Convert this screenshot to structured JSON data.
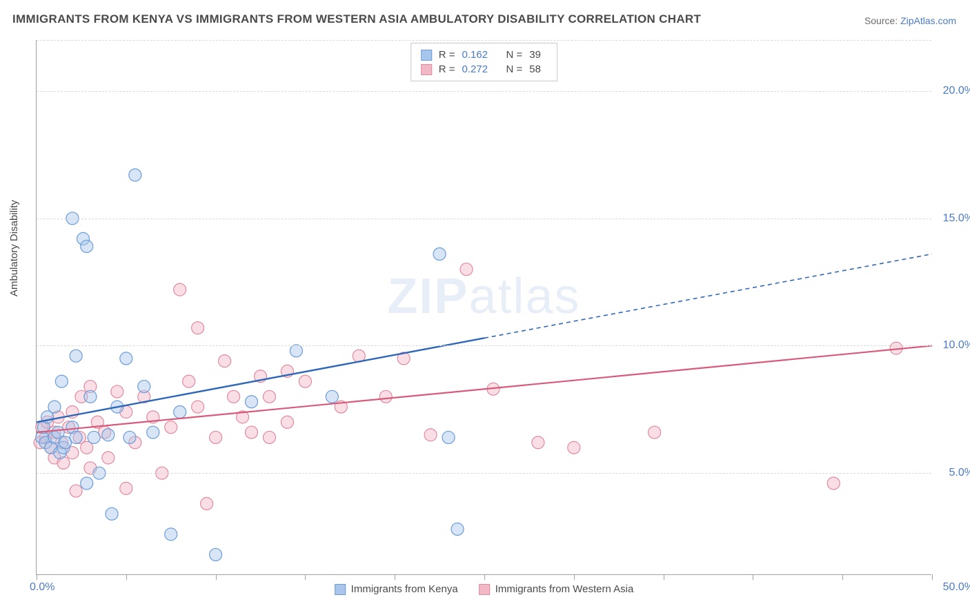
{
  "title": "IMMIGRANTS FROM KENYA VS IMMIGRANTS FROM WESTERN ASIA AMBULATORY DISABILITY CORRELATION CHART",
  "source_prefix": "Source: ",
  "source_link": "ZipAtlas.com",
  "y_axis_label": "Ambulatory Disability",
  "watermark_a": "ZIP",
  "watermark_b": "atlas",
  "chart": {
    "type": "scatter-correlation",
    "x_range": [
      0,
      50
    ],
    "y_range": [
      1,
      22
    ],
    "x_ticks": [
      0,
      5,
      10,
      15,
      20,
      25,
      30,
      35,
      40,
      45,
      50
    ],
    "x_labels": {
      "0": "0.0%",
      "50": "50.0%"
    },
    "y_gridlines": [
      5,
      10,
      15,
      20
    ],
    "y_labels": {
      "5": "5.0%",
      "10": "10.0%",
      "15": "15.0%",
      "20": "20.0%"
    },
    "background_color": "#ffffff",
    "grid_color": "#d8d8d8",
    "axis_color": "#a0a0a0",
    "tick_label_color": "#4a7bc4",
    "marker_radius": 9,
    "marker_opacity": 0.45,
    "series": [
      {
        "id": "kenya",
        "label": "Immigrants from Kenya",
        "color_fill": "#a8c6ec",
        "color_stroke": "#6a9cd8",
        "line_color": "#2e66b8",
        "R": "0.162",
        "N": "39",
        "trend": {
          "x1": 0,
          "y1": 7.0,
          "x2": 25,
          "y2": 10.3,
          "dash_x2": 50,
          "dash_y2": 13.6
        },
        "points": [
          [
            0.3,
            6.4
          ],
          [
            0.4,
            6.8
          ],
          [
            0.5,
            6.2
          ],
          [
            0.6,
            7.2
          ],
          [
            0.8,
            6.0
          ],
          [
            1.0,
            6.4
          ],
          [
            1.0,
            7.6
          ],
          [
            1.2,
            6.6
          ],
          [
            1.3,
            5.8
          ],
          [
            1.4,
            8.6
          ],
          [
            1.5,
            6.0
          ],
          [
            1.6,
            6.2
          ],
          [
            2.0,
            6.8
          ],
          [
            2.0,
            15.0
          ],
          [
            2.2,
            9.6
          ],
          [
            2.2,
            6.4
          ],
          [
            2.6,
            14.2
          ],
          [
            2.8,
            4.6
          ],
          [
            2.8,
            13.9
          ],
          [
            3.0,
            8.0
          ],
          [
            3.2,
            6.4
          ],
          [
            3.5,
            5.0
          ],
          [
            4.0,
            6.5
          ],
          [
            4.2,
            3.4
          ],
          [
            4.5,
            7.6
          ],
          [
            5.0,
            9.5
          ],
          [
            5.2,
            6.4
          ],
          [
            5.5,
            16.7
          ],
          [
            6.0,
            8.4
          ],
          [
            6.5,
            6.6
          ],
          [
            7.5,
            2.6
          ],
          [
            8.0,
            7.4
          ],
          [
            10.0,
            1.8
          ],
          [
            12.0,
            7.8
          ],
          [
            14.5,
            9.8
          ],
          [
            16.5,
            8.0
          ],
          [
            22.5,
            13.6
          ],
          [
            23.5,
            2.8
          ],
          [
            23.0,
            6.4
          ]
        ]
      },
      {
        "id": "western_asia",
        "label": "Immigrants from Western Asia",
        "color_fill": "#f2b8c6",
        "color_stroke": "#e089a0",
        "line_color": "#d85a7a",
        "R": "0.272",
        "N": "58",
        "trend": {
          "x1": 0,
          "y1": 6.6,
          "x2": 50,
          "y2": 10.0
        },
        "points": [
          [
            0.2,
            6.2
          ],
          [
            0.3,
            6.8
          ],
          [
            0.5,
            6.4
          ],
          [
            0.6,
            7.0
          ],
          [
            0.8,
            6.0
          ],
          [
            1.0,
            5.6
          ],
          [
            1.0,
            6.6
          ],
          [
            1.2,
            7.2
          ],
          [
            1.4,
            6.2
          ],
          [
            1.5,
            5.4
          ],
          [
            1.8,
            6.8
          ],
          [
            2.0,
            5.8
          ],
          [
            2.0,
            7.4
          ],
          [
            2.2,
            4.3
          ],
          [
            2.4,
            6.4
          ],
          [
            2.5,
            8.0
          ],
          [
            2.8,
            6.0
          ],
          [
            3.0,
            5.2
          ],
          [
            3.0,
            8.4
          ],
          [
            3.4,
            7.0
          ],
          [
            3.8,
            6.6
          ],
          [
            4.0,
            5.6
          ],
          [
            4.5,
            8.2
          ],
          [
            5.0,
            7.4
          ],
          [
            5.0,
            4.4
          ],
          [
            5.5,
            6.2
          ],
          [
            6.0,
            8.0
          ],
          [
            6.5,
            7.2
          ],
          [
            7.0,
            5.0
          ],
          [
            7.5,
            6.8
          ],
          [
            8.0,
            12.2
          ],
          [
            8.5,
            8.6
          ],
          [
            9.0,
            10.7
          ],
          [
            9.0,
            7.6
          ],
          [
            9.5,
            3.8
          ],
          [
            10.0,
            6.4
          ],
          [
            10.5,
            9.4
          ],
          [
            11.0,
            8.0
          ],
          [
            11.5,
            7.2
          ],
          [
            12.0,
            6.6
          ],
          [
            12.5,
            8.8
          ],
          [
            13.0,
            6.4
          ],
          [
            13.0,
            8.0
          ],
          [
            14.0,
            9.0
          ],
          [
            14.0,
            7.0
          ],
          [
            15.0,
            8.6
          ],
          [
            17.0,
            7.6
          ],
          [
            18.0,
            9.6
          ],
          [
            19.5,
            8.0
          ],
          [
            20.5,
            9.5
          ],
          [
            22.0,
            6.5
          ],
          [
            24.0,
            13.0
          ],
          [
            25.5,
            8.3
          ],
          [
            28.0,
            6.2
          ],
          [
            30.0,
            6.0
          ],
          [
            34.5,
            6.6
          ],
          [
            44.5,
            4.6
          ],
          [
            48.0,
            9.9
          ]
        ]
      }
    ]
  },
  "legend_top_labels": {
    "R": "R  =",
    "N": "N  ="
  }
}
